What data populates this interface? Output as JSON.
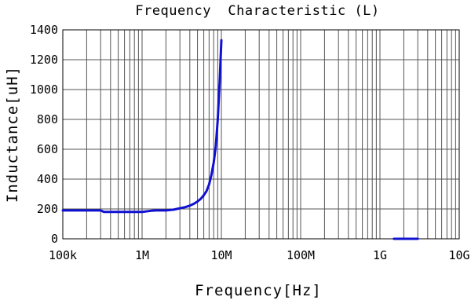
{
  "chart_data": {
    "type": "line",
    "title": "Frequency  Characteristic (L)",
    "xlabel": "Frequency[Hz]",
    "ylabel": "Inductance[uH]",
    "x_scale": "log",
    "xlim": [
      100000,
      10000000000
    ],
    "ylim": [
      0,
      1400
    ],
    "grid": true,
    "x_tick_labels": [
      {
        "value": 100000,
        "label": "100k"
      },
      {
        "value": 1000000,
        "label": "1M"
      },
      {
        "value": 10000000,
        "label": "10M"
      },
      {
        "value": 100000000,
        "label": "100M"
      },
      {
        "value": 1000000000,
        "label": "1G"
      },
      {
        "value": 10000000000,
        "label": "10G"
      }
    ],
    "y_tick_labels": [
      {
        "value": 0,
        "label": "0"
      },
      {
        "value": 200,
        "label": "200"
      },
      {
        "value": 400,
        "label": "400"
      },
      {
        "value": 600,
        "label": "600"
      },
      {
        "value": 800,
        "label": "800"
      },
      {
        "value": 1000,
        "label": "1000"
      },
      {
        "value": 1200,
        "label": "1200"
      },
      {
        "value": 1400,
        "label": "1400"
      }
    ],
    "series": [
      {
        "color": "#1010d0",
        "segments": [
          {
            "x": [
              100000,
              150000,
              200000,
              300000,
              330000,
              500000,
              700000,
              1000000,
              1300000,
              1500000,
              2000000,
              2500000,
              3000000,
              3500000,
              4000000,
              4500000,
              5000000,
              5500000,
              6000000,
              6500000,
              7000000,
              7500000,
              8000000,
              8500000,
              9000000,
              9500000,
              10000000
            ],
            "y": [
              190,
              190,
              190,
              190,
              180,
              180,
              180,
              180,
              188,
              190,
              190,
              195,
              205,
              212,
              222,
              235,
              250,
              268,
              292,
              320,
              365,
              430,
              510,
              620,
              800,
              1050,
              1330
            ]
          },
          {
            "x": [
              1500000000,
              2000000000,
              2500000000,
              3000000000
            ],
            "y": [
              0,
              0,
              0,
              0
            ]
          }
        ]
      }
    ]
  }
}
